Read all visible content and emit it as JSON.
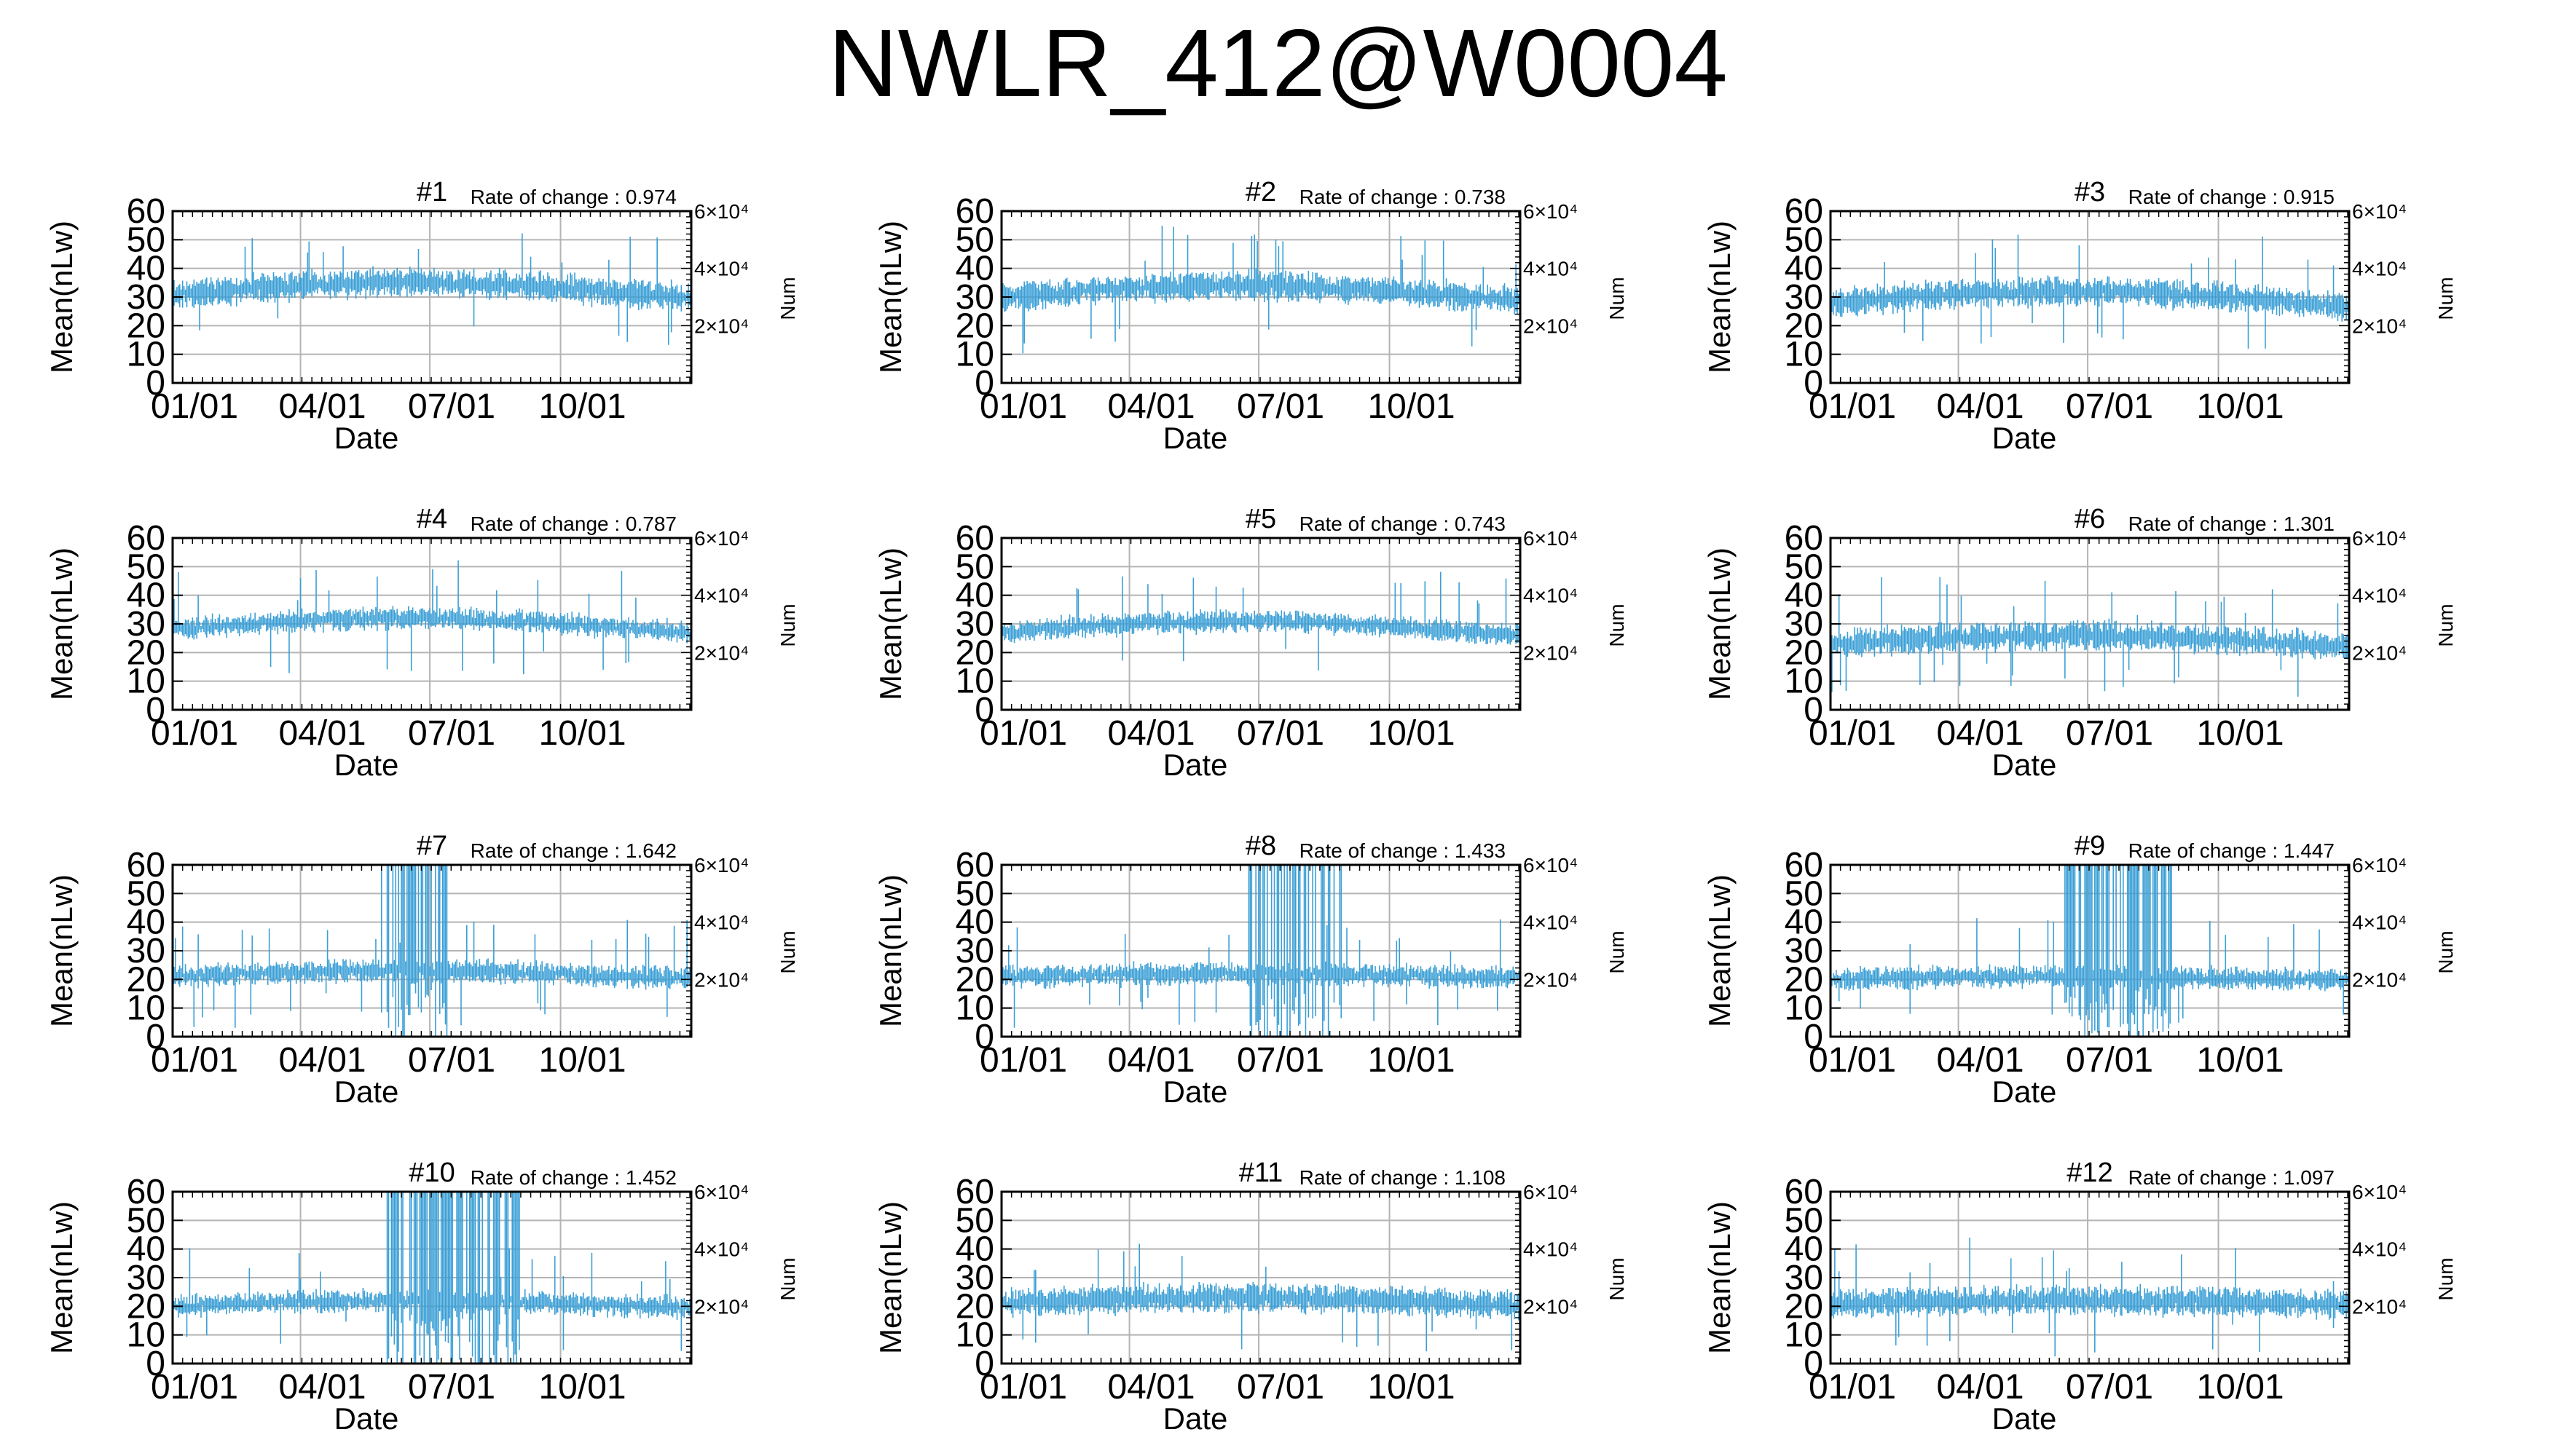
{
  "page_title": "NWLR_412@W0004",
  "chart_data": [
    {
      "type": "line",
      "panel_label": "#1",
      "rate_of_change": "Rate of change : 0.974",
      "base": 31,
      "trend": 4,
      "noise": 4,
      "spike": 0,
      "spike_start": 0,
      "spike_end": 0,
      "seed": 11
    },
    {
      "type": "line",
      "panel_label": "#2",
      "rate_of_change": "Rate of change : 0.738",
      "base": 30,
      "trend": 4,
      "noise": 4,
      "spike": 0,
      "spike_start": 0,
      "spike_end": 0,
      "seed": 23
    },
    {
      "type": "line",
      "panel_label": "#3",
      "rate_of_change": "Rate of change : 0.915",
      "base": 28,
      "trend": 4,
      "noise": 4,
      "spike": 0,
      "spike_start": 0,
      "spike_end": 0,
      "seed": 37
    },
    {
      "type": "line",
      "panel_label": "#4",
      "rate_of_change": "Rate of change : 0.787",
      "base": 28,
      "trend": 4,
      "noise": 3,
      "spike": 0,
      "spike_start": 0,
      "spike_end": 0,
      "seed": 41
    },
    {
      "type": "line",
      "panel_label": "#5",
      "rate_of_change": "Rate of change : 0.743",
      "base": 27,
      "trend": 4,
      "noise": 3,
      "spike": 0,
      "spike_start": 0,
      "spike_end": 0,
      "seed": 53
    },
    {
      "type": "line",
      "panel_label": "#6",
      "rate_of_change": "Rate of change : 1.301",
      "base": 23,
      "trend": 3,
      "noise": 4,
      "spike": 0,
      "spike_start": 0,
      "spike_end": 0,
      "seed": 67
    },
    {
      "type": "line",
      "panel_label": "#7",
      "rate_of_change": "Rate of change : 1.642",
      "base": 21,
      "trend": 2,
      "noise": 3,
      "spike": 1,
      "spike_start": 0.4,
      "spike_end": 0.53,
      "seed": 71
    },
    {
      "type": "line",
      "panel_label": "#8",
      "rate_of_change": "Rate of change : 1.433",
      "base": 21,
      "trend": 1,
      "noise": 3,
      "spike": 1,
      "spike_start": 0.47,
      "spike_end": 0.66,
      "seed": 83
    },
    {
      "type": "line",
      "panel_label": "#9",
      "rate_of_change": "Rate of change : 1.447",
      "base": 20,
      "trend": 1,
      "noise": 3,
      "spike": 1,
      "spike_start": 0.45,
      "spike_end": 0.66,
      "seed": 97
    },
    {
      "type": "line",
      "panel_label": "#10",
      "rate_of_change": "Rate of change : 1.452",
      "base": 20,
      "trend": 2,
      "noise": 3,
      "spike": 1,
      "spike_start": 0.41,
      "spike_end": 0.67,
      "seed": 101
    },
    {
      "type": "line",
      "panel_label": "#11",
      "rate_of_change": "Rate of change : 1.108",
      "base": 21,
      "trend": 2,
      "noise": 4,
      "spike": 0,
      "spike_start": 0,
      "spike_end": 0,
      "seed": 113
    },
    {
      "type": "line",
      "panel_label": "#12",
      "rate_of_change": "Rate of change : 1.097",
      "base": 21,
      "trend": 1,
      "noise": 4,
      "spike": 0,
      "spike_start": 0,
      "spike_end": 0,
      "seed": 127
    }
  ],
  "axes": {
    "ylabel": "Mean(nLw)",
    "xlabel": "Date",
    "right_label": "Num",
    "ylim": [
      0,
      60
    ],
    "y_ticks": [
      0,
      10,
      20,
      30,
      40,
      50,
      60
    ],
    "x_ticks": [
      "01/01",
      "04/01",
      "07/01",
      "10/01"
    ],
    "x_tick_days": [
      0,
      90,
      181,
      273
    ],
    "x_days": 365,
    "right_ticks": [
      {
        "label": "2×10⁴",
        "value": 20000
      },
      {
        "label": "4×10⁴",
        "value": 40000
      },
      {
        "label": "6×10⁴",
        "value": 60000
      }
    ],
    "right_lim": [
      0,
      60000
    ],
    "grid": true
  },
  "colors": {
    "series": "#3a9fd6",
    "grid": "#b4b4b4",
    "axis": "#000000"
  }
}
